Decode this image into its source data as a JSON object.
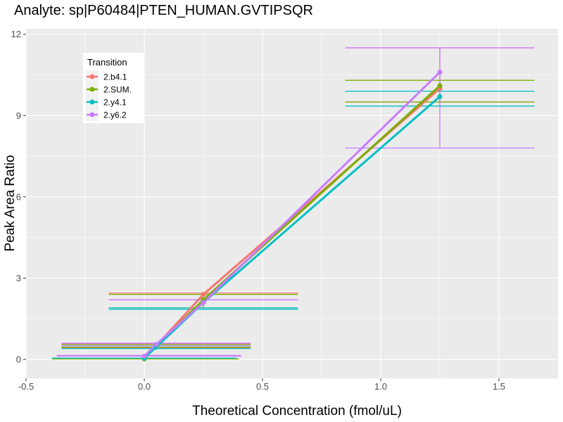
{
  "chart_data": {
    "type": "line",
    "title": "Analyte: sp|P60484|PTEN_HUMAN.GVTIPSQR",
    "xlabel": "Theoretical Concentration (fmol/uL)",
    "ylabel": "Peak Area Ratio",
    "xlim": [
      -0.5,
      1.75
    ],
    "ylim": [
      -0.7,
      12.2
    ],
    "x_ticks": [
      -0.5,
      0.0,
      0.5,
      1.0,
      1.5
    ],
    "y_ticks": [
      0,
      3,
      6,
      9,
      12
    ],
    "x_tick_labels": [
      "-0.5",
      "0.0",
      "0.5",
      "1.0",
      "1.5"
    ],
    "y_tick_labels": [
      "0",
      "3",
      "6",
      "9",
      "12"
    ],
    "grid": true,
    "background": "#ebebeb",
    "legend": {
      "title": "Transition",
      "position": "top-left inside"
    },
    "series": [
      {
        "name": "2.b4.1",
        "color": "#f8766d",
        "points": [
          {
            "x": 0.0,
            "y": 0.03,
            "xmin": -0.39,
            "xmax": 0.39,
            "ymin": 0.03,
            "ymax": 0.03
          },
          {
            "x": 0.05,
            "y": 0.5,
            "xmin": -0.35,
            "xmax": 0.45,
            "ymin": 0.42,
            "ymax": 0.58
          },
          {
            "x": 0.25,
            "y": 2.4,
            "xmin": -0.15,
            "xmax": 0.65,
            "ymin": 1.9,
            "ymax": 2.45
          },
          {
            "x": 1.25,
            "y": 10.0,
            "xmin": 0.85,
            "xmax": 1.65,
            "ymin": 9.5,
            "ymax": 11.5
          }
        ]
      },
      {
        "name": "2.SUM.",
        "color": "#7cae00",
        "points": [
          {
            "x": 0.0,
            "y": 0.02,
            "xmin": -0.39,
            "xmax": 0.4,
            "ymin": 0.02,
            "ymax": 0.02
          },
          {
            "x": 0.05,
            "y": 0.5,
            "xmin": -0.35,
            "xmax": 0.45,
            "ymin": 0.45,
            "ymax": 0.55
          },
          {
            "x": 0.25,
            "y": 2.2,
            "xmin": -0.15,
            "xmax": 0.65,
            "ymin": 1.9,
            "ymax": 2.4
          },
          {
            "x": 1.25,
            "y": 10.1,
            "xmin": 0.85,
            "xmax": 1.65,
            "ymin": 9.5,
            "ymax": 10.3
          }
        ]
      },
      {
        "name": "2.y4.1",
        "color": "#00bfc4",
        "points": [
          {
            "x": 0.0,
            "y": 0.05,
            "xmin": -0.39,
            "xmax": 0.39,
            "ymin": 0.05,
            "ymax": 0.05
          },
          {
            "x": 0.05,
            "y": 0.45,
            "xmin": -0.35,
            "xmax": 0.45,
            "ymin": 0.4,
            "ymax": 0.5
          },
          {
            "x": 0.25,
            "y": 2.1,
            "xmin": -0.15,
            "xmax": 0.65,
            "ymin": 1.85,
            "ymax": 1.9
          },
          {
            "x": 1.25,
            "y": 9.7,
            "xmin": 0.85,
            "xmax": 1.65,
            "ymin": 9.35,
            "ymax": 9.9
          }
        ]
      },
      {
        "name": "2.y6.2",
        "color": "#c77cff",
        "points": [
          {
            "x": 0.0,
            "y": 0.12,
            "xmin": -0.37,
            "xmax": 0.41,
            "ymin": 0.12,
            "ymax": 0.15
          },
          {
            "x": 0.05,
            "y": 0.55,
            "xmin": -0.35,
            "xmax": 0.45,
            "ymin": 0.5,
            "ymax": 0.6
          },
          {
            "x": 0.25,
            "y": 2.1,
            "xmin": -0.15,
            "xmax": 0.65,
            "ymin": 2.2,
            "ymax": 2.2
          },
          {
            "x": 1.25,
            "y": 10.6,
            "xmin": 0.85,
            "xmax": 1.65,
            "ymin": 7.8,
            "ymax": 11.5
          }
        ]
      }
    ]
  }
}
